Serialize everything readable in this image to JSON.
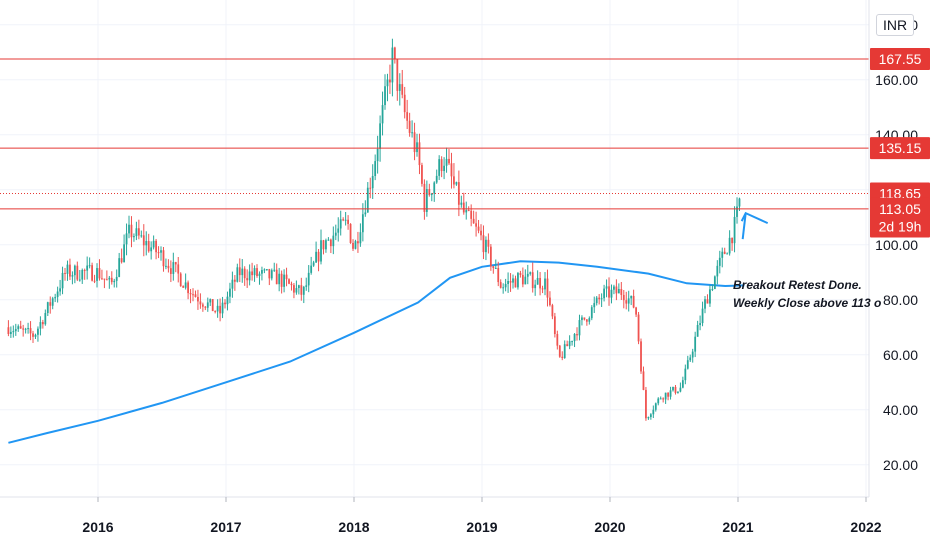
{
  "currency_label": "INR",
  "chart_data": {
    "type": "candlestick",
    "x_ticks": [
      "2016",
      "2017",
      "2018",
      "2019",
      "2020",
      "2021",
      "2022"
    ],
    "y_ticks": [
      "20.00",
      "40.00",
      "60.00",
      "80.00",
      "100.00",
      "120.00",
      "140.00",
      "160.00",
      "180.00"
    ],
    "ylim": [
      13,
      189
    ],
    "grid": true,
    "levels": [
      {
        "value": 167.55,
        "label": "167.55",
        "color": "#e53935",
        "style": "solid"
      },
      {
        "value": 135.15,
        "label": "135.15",
        "color": "#e53935",
        "style": "solid"
      },
      {
        "value": 118.65,
        "label": "118.65",
        "color": "#e53935",
        "style": "dotted"
      },
      {
        "value": 113.05,
        "label": "113.05",
        "color": "#e53935",
        "style": "solid"
      }
    ],
    "countdown_label": "2d 19h",
    "candle_up_color": "#26a69a",
    "candle_down_color": "#ef5350",
    "moving_average": {
      "color": "#2196f3",
      "points": [
        [
          2015.3,
          28.0
        ],
        [
          2015.6,
          31.5
        ],
        [
          2016.0,
          36.0
        ],
        [
          2016.5,
          42.5
        ],
        [
          2017.0,
          50.0
        ],
        [
          2017.5,
          57.5
        ],
        [
          2018.0,
          68.0
        ],
        [
          2018.5,
          79.0
        ],
        [
          2018.75,
          88.0
        ],
        [
          2019.0,
          92.0
        ],
        [
          2019.3,
          94.0
        ],
        [
          2019.6,
          93.5
        ],
        [
          2019.9,
          92.0
        ],
        [
          2020.3,
          89.5
        ],
        [
          2020.6,
          86.0
        ],
        [
          2020.9,
          85.0
        ],
        [
          2021.05,
          85.2
        ]
      ]
    },
    "price_path": [
      [
        2015.3,
        70
      ],
      [
        2015.5,
        67
      ],
      [
        2015.75,
        90
      ],
      [
        2016.0,
        90
      ],
      [
        2016.1,
        85
      ],
      [
        2016.25,
        105
      ],
      [
        2016.5,
        96
      ],
      [
        2016.75,
        82
      ],
      [
        2016.95,
        75
      ],
      [
        2017.1,
        90
      ],
      [
        2017.4,
        88
      ],
      [
        2017.6,
        82
      ],
      [
        2017.75,
        100
      ],
      [
        2017.95,
        108
      ],
      [
        2018.0,
        98
      ],
      [
        2018.15,
        128
      ],
      [
        2018.3,
        168
      ],
      [
        2018.38,
        150
      ],
      [
        2018.5,
        132
      ],
      [
        2018.55,
        115
      ],
      [
        2018.7,
        132
      ],
      [
        2018.85,
        112
      ],
      [
        2019.0,
        102
      ],
      [
        2019.15,
        85
      ],
      [
        2019.3,
        88
      ],
      [
        2019.5,
        86
      ],
      [
        2019.6,
        58
      ],
      [
        2019.75,
        70
      ],
      [
        2019.95,
        82
      ],
      [
        2020.1,
        83
      ],
      [
        2020.2,
        77
      ],
      [
        2020.28,
        37
      ],
      [
        2020.4,
        45
      ],
      [
        2020.55,
        48
      ],
      [
        2020.6,
        55
      ],
      [
        2020.75,
        80
      ],
      [
        2020.9,
        98
      ],
      [
        2020.97,
        106
      ],
      [
        2021.0,
        112
      ],
      [
        2021.02,
        118.65
      ]
    ],
    "annotation": {
      "lines": [
        "Breakout Retest Done.",
        "Weekly Close above 113 o"
      ],
      "arrow_color": "#2196f3"
    }
  }
}
